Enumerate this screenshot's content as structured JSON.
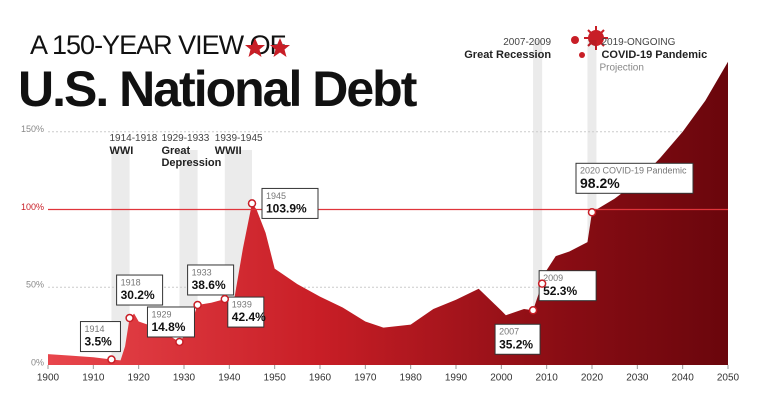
{
  "chart_data": {
    "type": "area",
    "kicker": "A 150-YEAR VIEW OF",
    "title": "U.S. National Debt",
    "x": [
      1900,
      1905,
      1910,
      1914,
      1916,
      1917,
      1918,
      1919,
      1920,
      1922,
      1925,
      1929,
      1931,
      1933,
      1936,
      1939,
      1941,
      1943,
      1945,
      1946,
      1948,
      1950,
      1955,
      1960,
      1965,
      1970,
      1974,
      1980,
      1985,
      1990,
      1995,
      2000,
      2001,
      2005,
      2007,
      2009,
      2010,
      2012,
      2015,
      2019,
      2020,
      2021,
      2025,
      2030,
      2035,
      2040,
      2045,
      2050
    ],
    "values": [
      7,
      6,
      5,
      3.5,
      3,
      12,
      30.2,
      33,
      28,
      26,
      22,
      14.8,
      22,
      38.6,
      40,
      42.4,
      41,
      75,
      103.9,
      100,
      85,
      62,
      52,
      44,
      37,
      28,
      24,
      26,
      36,
      42,
      49,
      35,
      32,
      36,
      35.2,
      52.3,
      61,
      70,
      73,
      79,
      98.2,
      100,
      107,
      118,
      133,
      150,
      170,
      195
    ],
    "xlim": [
      1900,
      2050
    ],
    "xticks": [
      1900,
      1910,
      1920,
      1930,
      1940,
      1950,
      1960,
      1970,
      1980,
      1990,
      2000,
      2010,
      2020,
      2030,
      2040,
      2050
    ],
    "ylim": [
      0,
      200
    ],
    "yticks": [
      {
        "value": 0,
        "label": "0%"
      },
      {
        "value": 50,
        "label": "50%"
      },
      {
        "value": 100,
        "label": "100%"
      },
      {
        "value": 150,
        "label": "150%"
      }
    ],
    "highlight_tick": 100,
    "color": "#c81e26",
    "grid": true,
    "periods": [
      {
        "start": 1914,
        "end": 1918,
        "label": "1914-1918",
        "name": "WWI"
      },
      {
        "start": 1929,
        "end": 1933,
        "label": "1929-1933",
        "name": "Great Depression"
      },
      {
        "start": 1939,
        "end": 1945,
        "label": "1939-1945",
        "name": "WWII"
      },
      {
        "start": 2007,
        "end": 2009,
        "label": "2007-2009",
        "name": "Great Recession"
      },
      {
        "start": 2019,
        "label": "2019-ONGOING",
        "name": "COVID-19 Pandemic"
      }
    ],
    "projection_label": "Projection",
    "annotations": [
      {
        "x": 1914,
        "value": 3.5,
        "label": "3.5%"
      },
      {
        "x": 1918,
        "value": 30.2,
        "label": "30.2%"
      },
      {
        "x": 1929,
        "value": 14.8,
        "label": "14.8%"
      },
      {
        "x": 1933,
        "value": 38.6,
        "label": "38.6%"
      },
      {
        "x": 1939,
        "value": 42.4,
        "label": "42.4%"
      },
      {
        "x": 1945,
        "value": 103.9,
        "label": "103.9%"
      },
      {
        "x": 2007,
        "value": 35.2,
        "label": "35.2%"
      },
      {
        "x": 2009,
        "value": 52.3,
        "label": "52.3%"
      },
      {
        "x": 2020,
        "note": "2020 COVID-19 Pandemic",
        "value": 98.2,
        "label": "98.2%"
      }
    ]
  }
}
